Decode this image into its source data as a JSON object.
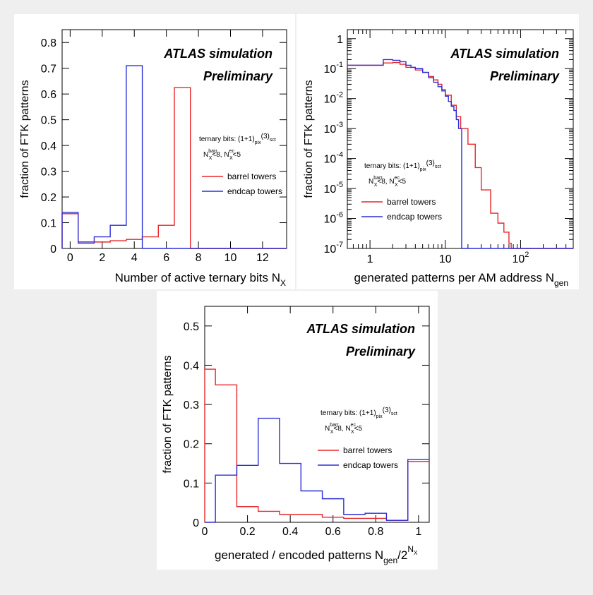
{
  "colors": {
    "barrel": "#e8262a",
    "endcap": "#2b2fd6",
    "axis": "#000000",
    "background": "#ffffff",
    "page": "#efefef"
  },
  "annotations": {
    "title_line1": "ATLAS simulation",
    "title_line2": "Preliminary",
    "ternary_prefix": "ternary bits: (1+1)",
    "ternary_pix": "pix",
    "ternary_3": "(3)",
    "ternary_sct": "sct",
    "cut_nx": "N",
    "cut_x": "X",
    "cut_barr": "barr",
    "cut_lt8": "<8, N",
    "cut_ec": "ec",
    "cut_lt5": "<5"
  },
  "chart_data": [
    {
      "type": "histogram",
      "panel": "top-left",
      "ylabel": "fraction of FTK patterns",
      "xlabel_main": "Number of active ternary bits N",
      "xlabel_sub": "X",
      "xlim": [
        -0.5,
        13.5
      ],
      "ylim": [
        0,
        0.85
      ],
      "xticks": [
        0,
        2,
        4,
        6,
        8,
        10,
        12
      ],
      "xtick_labels": [
        "0",
        "2",
        "4",
        "6",
        "8",
        "10",
        "12"
      ],
      "yticks": [
        0,
        0.1,
        0.2,
        0.3,
        0.4,
        0.5,
        0.6,
        0.7,
        0.8
      ],
      "ytick_labels": [
        "0",
        "0.1",
        "0.2",
        "0.3",
        "0.4",
        "0.5",
        "0.6",
        "0.7",
        "0.8"
      ],
      "bin_edges": [
        -0.5,
        0.5,
        1.5,
        2.5,
        3.5,
        4.5,
        5.5,
        6.5,
        7.5,
        8.5,
        9.5,
        10.5,
        11.5,
        12.5,
        13.5
      ],
      "series": [
        {
          "name": "barrel towers",
          "values": [
            0.135,
            0.02,
            0.025,
            0.03,
            0.035,
            0.045,
            0.09,
            0.625,
            0,
            0,
            0,
            0,
            0,
            0
          ]
        },
        {
          "name": "endcap towers",
          "values": [
            0.14,
            0.025,
            0.045,
            0.09,
            0.71,
            0,
            0,
            0,
            0,
            0,
            0,
            0,
            0,
            0
          ]
        }
      ],
      "legend": "right"
    },
    {
      "type": "histogram",
      "panel": "top-right",
      "ylabel": "fraction of FTK patterns",
      "xlabel_main": "generated patterns per AM address N",
      "xlabel_sub": "gen",
      "xscale": "log",
      "yscale": "log",
      "xlim": [
        0.5,
        500
      ],
      "ylim": [
        1e-07,
        2
      ],
      "xticks": [
        1,
        10,
        100
      ],
      "xtick_labels": [
        "1",
        "10",
        "10^2"
      ],
      "yticks": [
        1e-07,
        1e-06,
        1e-05,
        0.0001,
        0.001,
        0.01,
        0.1,
        1
      ],
      "ytick_labels": [
        "10^-7",
        "10^-6",
        "10^-5",
        "10^-4",
        "10^-3",
        "10^-2",
        "10^-1",
        "1"
      ],
      "series": [
        {
          "name": "barrel towers",
          "x": [
            0.5,
            1.5,
            2.0,
            2.5,
            3.0,
            4.0,
            5.0,
            6.0,
            7.0,
            8.0,
            9.0,
            10.0,
            12.0,
            14.0,
            16.0,
            20.0,
            25.0,
            30.0,
            40.0,
            50.0,
            60.0,
            70.0,
            75.0,
            500
          ],
          "y": [
            0.13,
            0.155,
            0.16,
            0.14,
            0.11,
            0.09,
            0.075,
            0.055,
            0.042,
            0.03,
            0.02,
            0.013,
            0.006,
            0.0025,
            0.001,
            0.0003,
            5e-05,
            9e-06,
            1.5e-06,
            7e-07,
            3.5e-07,
            1.5e-07,
            1e-07,
            1e-07
          ]
        },
        {
          "name": "endcap towers",
          "x": [
            0.5,
            1.5,
            2.0,
            2.5,
            3.0,
            3.5,
            4.0,
            5.0,
            6.0,
            7.0,
            8.0,
            9.0,
            10.0,
            11.0,
            12.0,
            13.0,
            14.0,
            15.0,
            16.5,
            500
          ],
          "y": [
            0.13,
            0.2,
            0.19,
            0.17,
            0.13,
            0.11,
            0.1,
            0.075,
            0.05,
            0.035,
            0.025,
            0.018,
            0.012,
            0.008,
            0.0055,
            0.004,
            0.002,
            0.001,
            1e-07,
            1e-07
          ]
        }
      ],
      "legend": "center"
    },
    {
      "type": "histogram",
      "panel": "bottom",
      "ylabel": "fraction of FTK patterns",
      "xlabel_main": "generated / encoded patterns N",
      "xlabel_sub": "gen",
      "xlabel_tail": "/2",
      "xlabel_sup": "N",
      "xlabel_supsub": "X",
      "xlim": [
        0,
        1.05
      ],
      "ylim": [
        0,
        0.55
      ],
      "xticks": [
        0,
        0.2,
        0.4,
        0.6,
        0.8,
        1
      ],
      "xtick_labels": [
        "0",
        "0.2",
        "0.4",
        "0.6",
        "0.8",
        "1"
      ],
      "yticks": [
        0,
        0.1,
        0.2,
        0.3,
        0.4,
        0.5
      ],
      "ytick_labels": [
        "0",
        "0.1",
        "0.2",
        "0.3",
        "0.4",
        "0.5"
      ],
      "bin_edges": [
        0,
        0.05,
        0.15,
        0.25,
        0.35,
        0.45,
        0.55,
        0.65,
        0.75,
        0.85,
        0.95,
        1.05
      ],
      "series": [
        {
          "name": "barrel towers",
          "values": [
            0.39,
            0.35,
            0.04,
            0.028,
            0.02,
            0.02,
            0.013,
            0.01,
            0.01,
            0.005,
            0.155
          ]
        },
        {
          "name": "endcap towers",
          "values": [
            0,
            0.12,
            0.145,
            0.265,
            0.15,
            0.08,
            0.06,
            0.02,
            0.023,
            0.005,
            0.16
          ]
        }
      ],
      "legend": "right"
    }
  ]
}
